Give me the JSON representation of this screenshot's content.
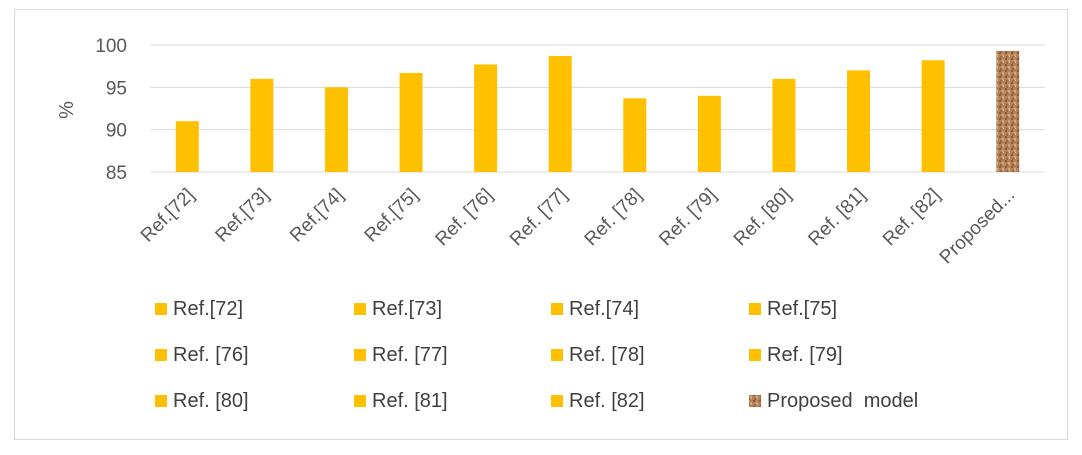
{
  "chart_data": {
    "type": "bar",
    "title": "",
    "xlabel": "",
    "ylabel": "%",
    "ylim": [
      85,
      100
    ],
    "yticks": [
      85,
      90,
      95,
      100
    ],
    "grid": true,
    "legend_position": "bottom",
    "categories": [
      "Ref.[72]",
      "Ref.[73]",
      "Ref.[74]",
      "Ref.[75]",
      "Ref. [76]",
      "Ref. [77]",
      "Ref. [78]",
      "Ref. [79]",
      "Ref. [80]",
      "Ref. [81]",
      "Ref. [82]",
      "Proposed..."
    ],
    "values": [
      91,
      96,
      95,
      96.7,
      97.7,
      98.7,
      93.7,
      94,
      96,
      97,
      98.2,
      99.3
    ],
    "colors": [
      "#FFC000",
      "#FFC000",
      "#FFC000",
      "#FFC000",
      "#FFC000",
      "#FFC000",
      "#FFC000",
      "#FFC000",
      "#FFC000",
      "#FFC000",
      "#FFC000",
      "#B5835A"
    ],
    "legend": [
      "Ref.[72]",
      "Ref.[73]",
      "Ref.[74]",
      "Ref.[75]",
      "Ref. [76]",
      "Ref. [77]",
      "Ref. [78]",
      "Ref. [79]",
      "Ref. [80]",
      "Ref. [81]",
      "Ref. [82]",
      "Proposed  model"
    ]
  }
}
